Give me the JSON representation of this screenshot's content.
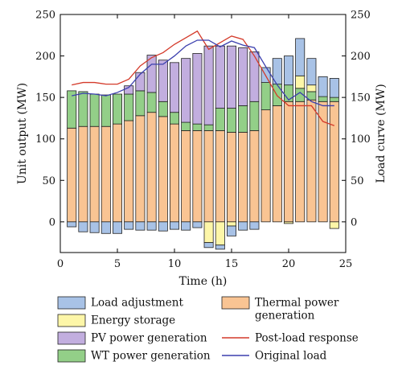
{
  "chart_data": {
    "type": "bar",
    "x": [
      1,
      2,
      3,
      4,
      5,
      6,
      7,
      8,
      9,
      10,
      11,
      12,
      13,
      14,
      15,
      16,
      17,
      18,
      19,
      20,
      21,
      22,
      23,
      24
    ],
    "series": [
      {
        "name": "Thermal power generation",
        "color": "#f9c493",
        "values": [
          113,
          115,
          115,
          115,
          118,
          122,
          128,
          132,
          127,
          118,
          110,
          110,
          110,
          110,
          108,
          108,
          110,
          135,
          140,
          145,
          145,
          147,
          145,
          145
        ]
      },
      {
        "name": "WT power generation",
        "color": "#93cf88",
        "values": [
          45,
          42,
          39,
          38,
          36,
          32,
          30,
          24,
          18,
          14,
          10,
          8,
          7,
          27,
          29,
          32,
          35,
          33,
          26,
          20,
          16,
          10,
          6,
          5
        ]
      },
      {
        "name": "PV power generation",
        "color": "#c2aedf",
        "values": [
          0,
          0,
          0,
          0,
          0,
          10,
          22,
          45,
          50,
          60,
          77,
          85,
          95,
          75,
          75,
          70,
          60,
          0,
          0,
          0,
          0,
          0,
          0,
          0
        ]
      },
      {
        "name": "Energy storage",
        "color": "#fdf6a8",
        "values": [
          0,
          0,
          0,
          0,
          0,
          0,
          0,
          0,
          0,
          0,
          0,
          0,
          -25,
          -28,
          -5,
          0,
          0,
          0,
          0,
          -2,
          15,
          8,
          0,
          -8
        ]
      },
      {
        "name": "Load adjustment",
        "color": "#a8c2e6",
        "values": [
          -6,
          -12,
          -13,
          -14,
          -14,
          -9,
          -10,
          -10,
          -11,
          -9,
          -10,
          -7,
          -6,
          -5,
          -12,
          -10,
          -9,
          18,
          31,
          35,
          45,
          32,
          24,
          23
        ]
      }
    ],
    "lines": [
      {
        "name": "Post-load response",
        "color": "#d43a2a",
        "values": [
          165,
          168,
          168,
          166,
          166,
          172,
          188,
          198,
          204,
          214,
          222,
          230,
          208,
          216,
          224,
          220,
          200,
          176,
          152,
          140,
          140,
          140,
          121,
          116
        ]
      },
      {
        "name": "Original load",
        "color": "#3b3fae",
        "values": [
          152,
          155,
          154,
          152,
          156,
          162,
          178,
          190,
          190,
          200,
          212,
          219,
          219,
          211,
          218,
          213,
          210,
          187,
          165,
          147,
          156,
          145,
          140,
          140
        ]
      }
    ],
    "xlabel": "Time (h)",
    "ylabel": "Unit output (MW)",
    "y2label": "Load curve (MW)",
    "xlim": [
      0,
      25
    ],
    "ylim": [
      -37,
      250
    ],
    "xticks": [
      0,
      5,
      10,
      15,
      20,
      25
    ],
    "yticks": [
      0,
      50,
      100,
      150,
      200,
      250
    ],
    "grid": false,
    "legend_position": "bottom",
    "legend": [
      {
        "label": "Load adjustment",
        "kind": "patch",
        "color": "#a8c2e6"
      },
      {
        "label": "Thermal power generation",
        "kind": "patch",
        "color": "#f9c493"
      },
      {
        "label": "Energy storage",
        "kind": "patch",
        "color": "#fdf6a8"
      },
      {
        "label": "Post-load response",
        "kind": "line",
        "color": "#d43a2a"
      },
      {
        "label": "PV power generation",
        "kind": "patch",
        "color": "#c2aedf"
      },
      {
        "label": "Original load",
        "kind": "line",
        "color": "#3b3fae"
      },
      {
        "label": "WT power generation",
        "kind": "patch",
        "color": "#93cf88"
      }
    ]
  }
}
